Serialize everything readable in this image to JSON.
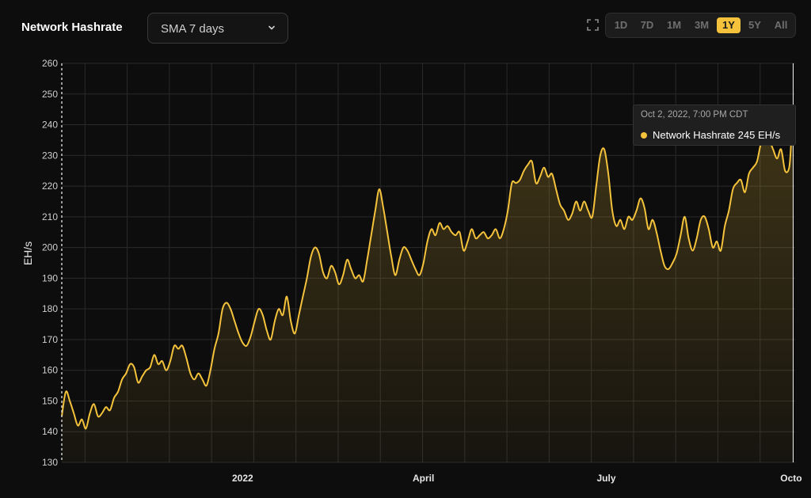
{
  "header": {
    "title": "Network Hashrate",
    "select_value": "SMA 7 days",
    "ranges": [
      "1D",
      "7D",
      "1M",
      "3M",
      "1Y",
      "5Y",
      "All"
    ],
    "active_range": "1Y"
  },
  "tooltip": {
    "date": "Oct 2, 2022, 7:00 PM CDT",
    "series_label": "Network Hashrate 245 EH/s"
  },
  "colors": {
    "line": "#f5c33b",
    "grid": "#2a2a2a",
    "background": "#0d0d0d"
  },
  "chart_data": {
    "type": "area",
    "title": "Network Hashrate",
    "ylabel": "EH/s",
    "xlabel": "",
    "ylim": [
      130,
      260
    ],
    "yticks": [
      130,
      140,
      150,
      160,
      170,
      180,
      190,
      200,
      210,
      220,
      230,
      240,
      250,
      260
    ],
    "xlim": [
      "2021-10-03",
      "2022-10-03"
    ],
    "xticks": [
      {
        "date": "2022-01-01",
        "label": "2022"
      },
      {
        "date": "2022-04-01",
        "label": "April"
      },
      {
        "date": "2022-07-01",
        "label": "July"
      },
      {
        "date": "2022-10-01",
        "label": "Octo"
      }
    ],
    "grid": true,
    "series": [
      {
        "name": "Network Hashrate",
        "points": [
          [
            "2021-10-03",
            145
          ],
          [
            "2021-10-05",
            153
          ],
          [
            "2021-10-07",
            150
          ],
          [
            "2021-10-09",
            146
          ],
          [
            "2021-10-11",
            142
          ],
          [
            "2021-10-13",
            144
          ],
          [
            "2021-10-15",
            141
          ],
          [
            "2021-10-17",
            146
          ],
          [
            "2021-10-19",
            149
          ],
          [
            "2021-10-21",
            145
          ],
          [
            "2021-10-23",
            146
          ],
          [
            "2021-10-25",
            148
          ],
          [
            "2021-10-27",
            147
          ],
          [
            "2021-10-29",
            151
          ],
          [
            "2021-10-31",
            153
          ],
          [
            "2021-11-02",
            157
          ],
          [
            "2021-11-04",
            159
          ],
          [
            "2021-11-06",
            162
          ],
          [
            "2021-11-08",
            161
          ],
          [
            "2021-11-10",
            156
          ],
          [
            "2021-11-12",
            158
          ],
          [
            "2021-11-14",
            160
          ],
          [
            "2021-11-16",
            161
          ],
          [
            "2021-11-18",
            165
          ],
          [
            "2021-11-20",
            162
          ],
          [
            "2021-11-22",
            163
          ],
          [
            "2021-11-24",
            160
          ],
          [
            "2021-11-26",
            163
          ],
          [
            "2021-11-28",
            168
          ],
          [
            "2021-11-30",
            167
          ],
          [
            "2021-12-02",
            168
          ],
          [
            "2021-12-04",
            164
          ],
          [
            "2021-12-06",
            159
          ],
          [
            "2021-12-08",
            157
          ],
          [
            "2021-12-10",
            159
          ],
          [
            "2021-12-12",
            157
          ],
          [
            "2021-12-14",
            155
          ],
          [
            "2021-12-16",
            160
          ],
          [
            "2021-12-18",
            167
          ],
          [
            "2021-12-20",
            172
          ],
          [
            "2021-12-22",
            180
          ],
          [
            "2021-12-24",
            182
          ],
          [
            "2021-12-26",
            180
          ],
          [
            "2021-12-28",
            176
          ],
          [
            "2021-12-30",
            172
          ],
          [
            "2022-01-01",
            169
          ],
          [
            "2022-01-03",
            168
          ],
          [
            "2022-01-05",
            171
          ],
          [
            "2022-01-07",
            176
          ],
          [
            "2022-01-09",
            180
          ],
          [
            "2022-01-11",
            178
          ],
          [
            "2022-01-13",
            173
          ],
          [
            "2022-01-15",
            170
          ],
          [
            "2022-01-17",
            176
          ],
          [
            "2022-01-19",
            180
          ],
          [
            "2022-01-21",
            178
          ],
          [
            "2022-01-23",
            184
          ],
          [
            "2022-01-25",
            176
          ],
          [
            "2022-01-27",
            172
          ],
          [
            "2022-01-29",
            178
          ],
          [
            "2022-01-31",
            184
          ],
          [
            "2022-02-02",
            190
          ],
          [
            "2022-02-04",
            197
          ],
          [
            "2022-02-06",
            200
          ],
          [
            "2022-02-08",
            198
          ],
          [
            "2022-02-10",
            192
          ],
          [
            "2022-02-12",
            190
          ],
          [
            "2022-02-14",
            194
          ],
          [
            "2022-02-16",
            192
          ],
          [
            "2022-02-18",
            188
          ],
          [
            "2022-02-20",
            191
          ],
          [
            "2022-02-22",
            196
          ],
          [
            "2022-02-24",
            193
          ],
          [
            "2022-02-26",
            190
          ],
          [
            "2022-02-28",
            191
          ],
          [
            "2022-03-02",
            189
          ],
          [
            "2022-03-04",
            196
          ],
          [
            "2022-03-06",
            204
          ],
          [
            "2022-03-08",
            212
          ],
          [
            "2022-03-10",
            219
          ],
          [
            "2022-03-12",
            213
          ],
          [
            "2022-03-14",
            205
          ],
          [
            "2022-03-16",
            197
          ],
          [
            "2022-03-18",
            191
          ],
          [
            "2022-03-20",
            196
          ],
          [
            "2022-03-22",
            200
          ],
          [
            "2022-03-24",
            199
          ],
          [
            "2022-03-26",
            196
          ],
          [
            "2022-03-28",
            193
          ],
          [
            "2022-03-30",
            191
          ],
          [
            "2022-04-01",
            195
          ],
          [
            "2022-04-03",
            202
          ],
          [
            "2022-04-05",
            206
          ],
          [
            "2022-04-07",
            204
          ],
          [
            "2022-04-09",
            208
          ],
          [
            "2022-04-11",
            206
          ],
          [
            "2022-04-13",
            207
          ],
          [
            "2022-04-15",
            205
          ],
          [
            "2022-04-17",
            204
          ],
          [
            "2022-04-19",
            205
          ],
          [
            "2022-04-21",
            199
          ],
          [
            "2022-04-23",
            202
          ],
          [
            "2022-04-25",
            206
          ],
          [
            "2022-04-27",
            203
          ],
          [
            "2022-04-29",
            204
          ],
          [
            "2022-05-01",
            205
          ],
          [
            "2022-05-03",
            203
          ],
          [
            "2022-05-05",
            204
          ],
          [
            "2022-05-07",
            206
          ],
          [
            "2022-05-09",
            203
          ],
          [
            "2022-05-11",
            206
          ],
          [
            "2022-05-13",
            212
          ],
          [
            "2022-05-15",
            221
          ],
          [
            "2022-05-17",
            221
          ],
          [
            "2022-05-19",
            222
          ],
          [
            "2022-05-21",
            225
          ],
          [
            "2022-05-23",
            227
          ],
          [
            "2022-05-25",
            228
          ],
          [
            "2022-05-27",
            221
          ],
          [
            "2022-05-29",
            223
          ],
          [
            "2022-05-31",
            226
          ],
          [
            "2022-06-02",
            223
          ],
          [
            "2022-06-04",
            224
          ],
          [
            "2022-06-06",
            219
          ],
          [
            "2022-06-08",
            214
          ],
          [
            "2022-06-10",
            212
          ],
          [
            "2022-06-12",
            209
          ],
          [
            "2022-06-14",
            211
          ],
          [
            "2022-06-16",
            215
          ],
          [
            "2022-06-18",
            212
          ],
          [
            "2022-06-20",
            215
          ],
          [
            "2022-06-22",
            212
          ],
          [
            "2022-06-24",
            210
          ],
          [
            "2022-06-26",
            220
          ],
          [
            "2022-06-28",
            230
          ],
          [
            "2022-06-30",
            232
          ],
          [
            "2022-07-02",
            224
          ],
          [
            "2022-07-04",
            212
          ],
          [
            "2022-07-06",
            207
          ],
          [
            "2022-07-08",
            209
          ],
          [
            "2022-07-10",
            206
          ],
          [
            "2022-07-12",
            210
          ],
          [
            "2022-07-14",
            209
          ],
          [
            "2022-07-16",
            212
          ],
          [
            "2022-07-18",
            216
          ],
          [
            "2022-07-20",
            213
          ],
          [
            "2022-07-22",
            206
          ],
          [
            "2022-07-24",
            209
          ],
          [
            "2022-07-26",
            205
          ],
          [
            "2022-07-28",
            199
          ],
          [
            "2022-07-30",
            194
          ],
          [
            "2022-08-01",
            193
          ],
          [
            "2022-08-03",
            195
          ],
          [
            "2022-08-05",
            198
          ],
          [
            "2022-08-07",
            204
          ],
          [
            "2022-08-09",
            210
          ],
          [
            "2022-08-11",
            203
          ],
          [
            "2022-08-13",
            199
          ],
          [
            "2022-08-15",
            203
          ],
          [
            "2022-08-17",
            209
          ],
          [
            "2022-08-19",
            210
          ],
          [
            "2022-08-21",
            206
          ],
          [
            "2022-08-23",
            200
          ],
          [
            "2022-08-25",
            202
          ],
          [
            "2022-08-27",
            199
          ],
          [
            "2022-08-29",
            207
          ],
          [
            "2022-08-31",
            212
          ],
          [
            "2022-09-02",
            219
          ],
          [
            "2022-09-04",
            221
          ],
          [
            "2022-09-06",
            222
          ],
          [
            "2022-09-08",
            218
          ],
          [
            "2022-09-10",
            224
          ],
          [
            "2022-09-12",
            226
          ],
          [
            "2022-09-14",
            228
          ],
          [
            "2022-09-16",
            234
          ],
          [
            "2022-09-18",
            236
          ],
          [
            "2022-09-20",
            235
          ],
          [
            "2022-09-22",
            232
          ],
          [
            "2022-09-24",
            229
          ],
          [
            "2022-09-26",
            232
          ],
          [
            "2022-09-28",
            225
          ],
          [
            "2022-09-30",
            226
          ],
          [
            "2022-10-01",
            234
          ]
        ]
      }
    ],
    "highlight": {
      "date": "2022-10-02",
      "value": 245
    }
  }
}
